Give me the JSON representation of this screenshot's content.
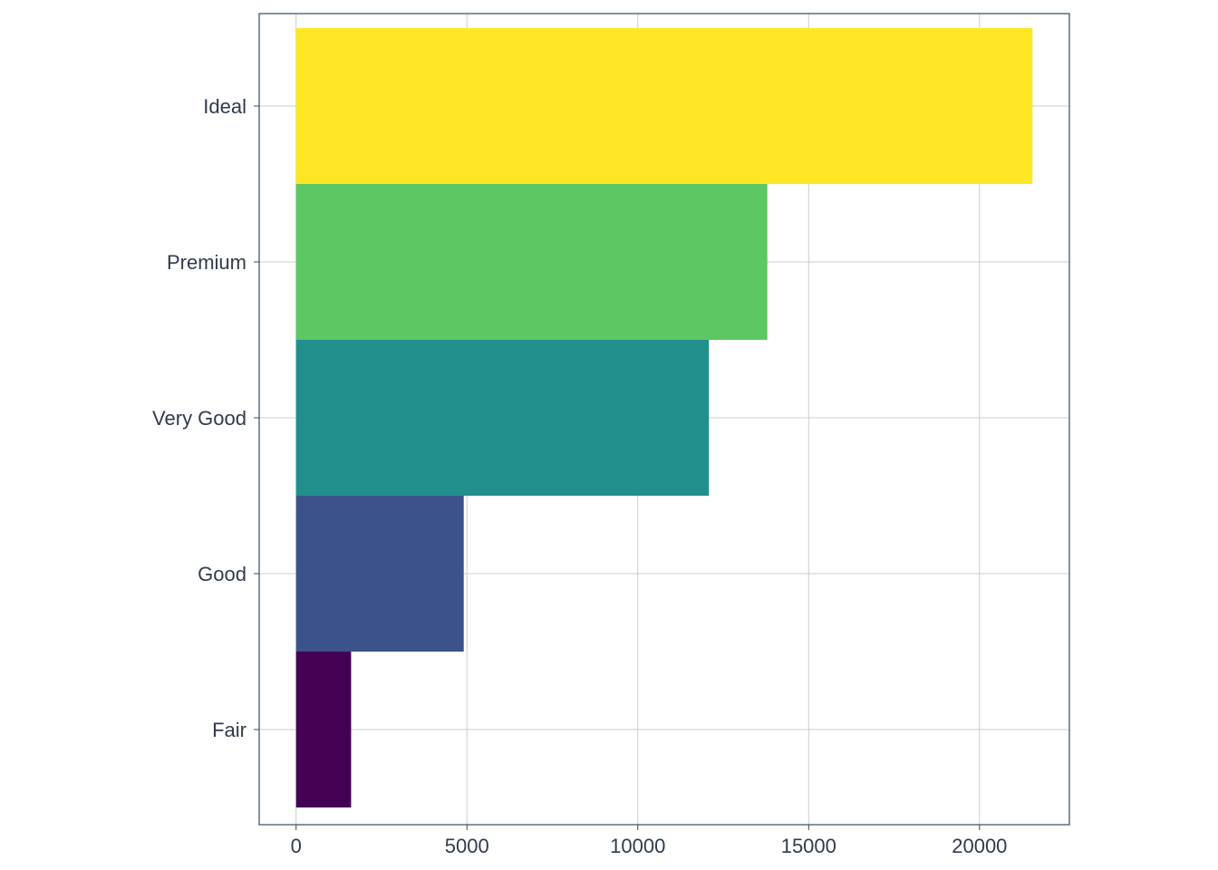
{
  "chart_data": {
    "type": "bar",
    "orientation": "horizontal",
    "categories": [
      "Fair",
      "Good",
      "Very Good",
      "Premium",
      "Ideal"
    ],
    "values": [
      1610,
      4906,
      12082,
      13791,
      21551
    ],
    "colors": [
      "#440154",
      "#3B528B",
      "#21908C",
      "#5DC863",
      "#FDE725"
    ],
    "title": "",
    "xlabel": "",
    "ylabel": "",
    "xlim": [
      -1080,
      22630
    ],
    "x_ticks": [
      0,
      5000,
      10000,
      15000,
      20000
    ],
    "x_tick_labels": [
      "0",
      "5000",
      "10000",
      "15000",
      "20000"
    ],
    "grid": true,
    "legend": "none"
  }
}
